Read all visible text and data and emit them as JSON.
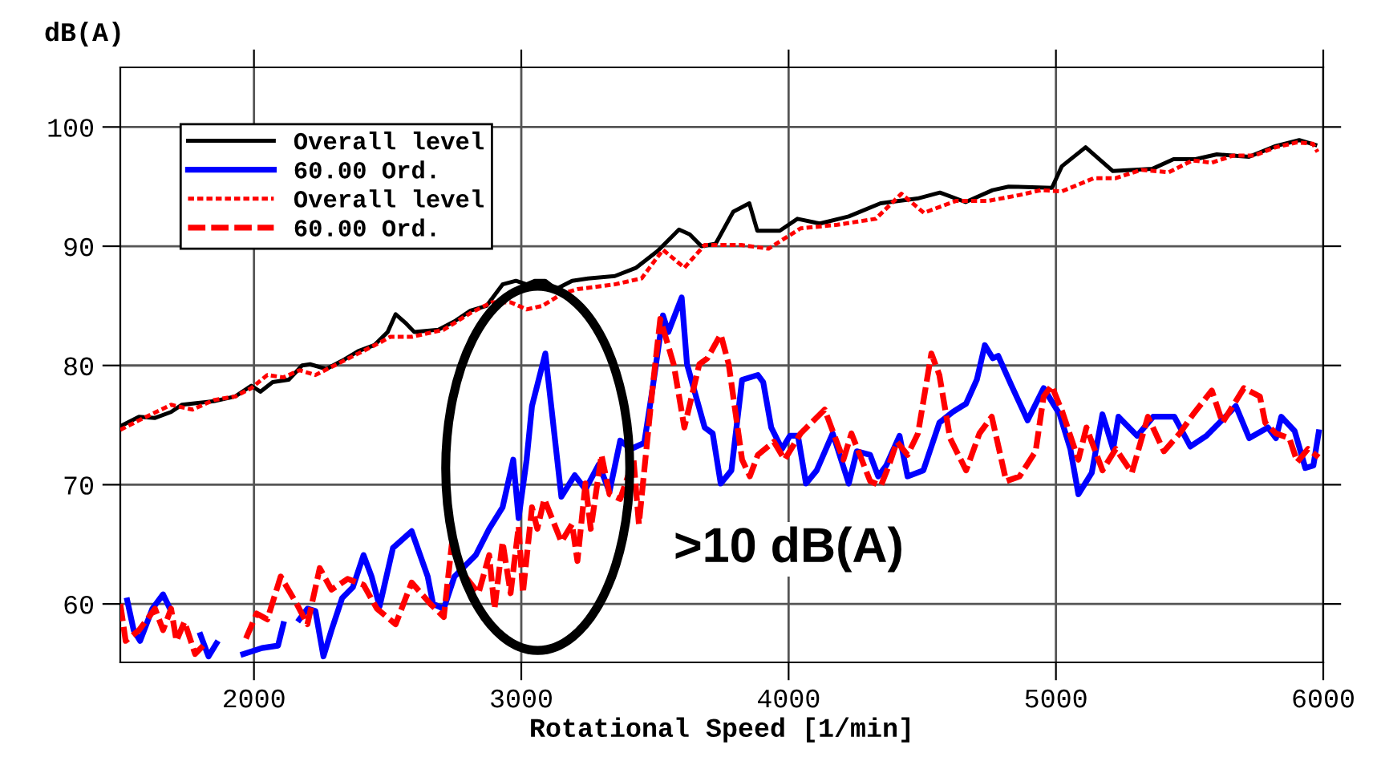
{
  "chart_data": {
    "type": "line",
    "xlabel": "Rotational Speed [1/min]",
    "ylabel": "dB(A)",
    "xlim": [
      1500,
      6000
    ],
    "ylim": [
      55.1,
      105
    ],
    "xticks": [
      2000,
      3000,
      4000,
      5000,
      6000
    ],
    "yticks": [
      60,
      70,
      80,
      90,
      100
    ],
    "grid": true,
    "legend": "top left",
    "annotations": [
      ">10 dB(A)"
    ],
    "series": [
      {
        "name": "Overall level",
        "color": "#000000",
        "line_style": "solid",
        "x": [
          1500,
          1570,
          1630,
          1690,
          1730,
          1850,
          1930,
          1990,
          2024,
          2070,
          2130,
          2180,
          2210,
          2270,
          2330,
          2390,
          2450,
          2500,
          2530,
          2570,
          2600,
          2690,
          2750,
          2810,
          2870,
          2930,
          2980,
          3020,
          3050,
          3090,
          3130,
          3190,
          3250,
          3350,
          3430,
          3510,
          3590,
          3630,
          3674,
          3727,
          3793,
          3853,
          3883,
          3967,
          4033,
          4117,
          4225,
          4344,
          4482,
          4566,
          4662,
          4763,
          4823,
          4985,
          5022,
          5111,
          5213,
          5362,
          5440,
          5522,
          5602,
          5722,
          5822,
          5910,
          5970
        ],
        "values": [
          74.9,
          75.7,
          75.6,
          76.1,
          76.7,
          77.0,
          77.4,
          78.3,
          77.8,
          78.6,
          78.8,
          80.0,
          80.1,
          79.7,
          80.4,
          81.2,
          81.7,
          82.8,
          84.3,
          83.5,
          82.8,
          83.0,
          83.7,
          84.6,
          85.0,
          86.8,
          87.1,
          86.8,
          87.1,
          87.1,
          86.4,
          87.1,
          87.3,
          87.5,
          88.2,
          89.6,
          91.4,
          91.0,
          90.0,
          90.2,
          92.9,
          93.6,
          91.3,
          91.3,
          92.3,
          91.9,
          92.5,
          93.6,
          94.0,
          94.5,
          93.7,
          94.7,
          95.0,
          94.9,
          96.7,
          98.3,
          96.3,
          96.5,
          97.3,
          97.3,
          97.7,
          97.5,
          98.4,
          98.9,
          98.5
        ]
      },
      {
        "name": "60.00 Ord.",
        "color": "#0000ff",
        "line_style": "solid",
        "x": [
          1526,
          1550,
          1574,
          1620,
          1660,
          1686,
          1710,
          1770,
          1800,
          1830,
          1860,
          1880,
          1940,
          1960,
          2030,
          2090,
          2110,
          2140,
          2170,
          2200,
          2230,
          2260,
          2290,
          2330,
          2370,
          2410,
          2440,
          2470,
          2520,
          2590,
          2650,
          2670,
          2710,
          2750,
          2790,
          2830,
          2880,
          2930,
          2970,
          2990,
          3020,
          3040,
          3090,
          3150,
          3200,
          3240,
          3290,
          3330,
          3370,
          3410,
          3460,
          3490,
          3530,
          3550,
          3600,
          3620,
          3686,
          3716,
          3746,
          3786,
          3826,
          3885,
          3905,
          3935,
          3975,
          4005,
          4035,
          4065,
          4105,
          4165,
          4225,
          4255,
          4305,
          4335,
          4365,
          4415,
          4445,
          4504,
          4564,
          4614,
          4664,
          4704,
          4734,
          4764,
          4784,
          4834,
          4894,
          4954,
          5014,
          5054,
          5084,
          5134,
          5174,
          5214,
          5234,
          5304,
          5364,
          5443,
          5503,
          5563,
          5643,
          5673,
          5723,
          5793,
          5823,
          5843,
          5893,
          5933,
          5963,
          5983
        ],
        "values": [
          60.3,
          57.8,
          56.9,
          59.6,
          60.8,
          59.6,
          null,
          null,
          57.4,
          55.6,
          56.7,
          null,
          null,
          55.8,
          56.3,
          56.5,
          58.3,
          null,
          58.7,
          59.6,
          59.4,
          55.6,
          57.8,
          60.5,
          61.4,
          64.1,
          62.3,
          59.8,
          64.7,
          66.1,
          62.3,
          60.0,
          59.6,
          62.3,
          63.2,
          64.1,
          66.3,
          68.1,
          72.1,
          67.2,
          72.1,
          76.6,
          81.0,
          69.0,
          70.8,
          69.6,
          71.7,
          69.4,
          73.7,
          73.0,
          73.5,
          77.9,
          84.2,
          82.8,
          85.7,
          80.1,
          74.8,
          74.3,
          70.1,
          71.2,
          78.8,
          79.2,
          78.6,
          74.8,
          73.0,
          74.1,
          74.1,
          70.1,
          71.2,
          74.3,
          70.1,
          72.8,
          72.5,
          70.7,
          71.6,
          74.1,
          70.7,
          71.2,
          75.2,
          76.1,
          76.8,
          78.8,
          81.7,
          80.6,
          80.8,
          78.3,
          75.4,
          78.1,
          75.9,
          73.0,
          69.2,
          71.0,
          75.9,
          73.0,
          75.7,
          74.1,
          75.7,
          75.7,
          73.2,
          74.1,
          75.9,
          76.6,
          73.9,
          74.8,
          73.9,
          75.7,
          74.5,
          71.4,
          71.6,
          74.4
        ]
      },
      {
        "name": "Overall level",
        "color": "#ff0000",
        "line_style": "dotted",
        "x": [
          1500,
          1570,
          1690,
          1770,
          1850,
          1930,
          1990,
          2050,
          2110,
          2170,
          2230,
          2310,
          2390,
          2470,
          2510,
          2590,
          2710,
          2810,
          2890,
          2960,
          3020,
          3080,
          3150,
          3210,
          3350,
          3450,
          3530,
          3610,
          3686,
          3823,
          3925,
          4045,
          4183,
          4326,
          4422,
          4506,
          4626,
          4746,
          4865,
          4943,
          5022,
          5141,
          5222,
          5320,
          5422,
          5511,
          5582,
          5662,
          5742,
          5822,
          5901,
          5961,
          5979
        ],
        "values": [
          74.6,
          75.4,
          76.7,
          76.3,
          77.1,
          77.4,
          78.1,
          79.2,
          79.0,
          79.6,
          79.2,
          80.1,
          81.0,
          81.9,
          82.4,
          82.4,
          83.0,
          84.4,
          85.3,
          85.3,
          84.7,
          85.0,
          86.0,
          86.4,
          86.8,
          87.3,
          89.7,
          88.2,
          90.1,
          90.1,
          89.8,
          91.5,
          91.8,
          92.3,
          94.4,
          92.8,
          93.8,
          93.8,
          94.3,
          94.7,
          94.6,
          95.7,
          95.7,
          96.4,
          96.2,
          97.2,
          97.0,
          97.6,
          97.6,
          98.3,
          98.7,
          98.6,
          97.9
        ]
      },
      {
        "name": "60.00 Ord.",
        "color": "#ff0000",
        "line_style": "dashed",
        "x": [
          1500,
          1520,
          1570,
          1630,
          1660,
          1690,
          1710,
          1740,
          1780,
          1810,
          1830,
          1910,
          1970,
          2010,
          2050,
          2100,
          2160,
          2200,
          2246,
          2290,
          2350,
          2410,
          2460,
          2530,
          2590,
          2660,
          2710,
          2740,
          2790,
          2840,
          2880,
          2900,
          2930,
          2960,
          2990,
          3006,
          3040,
          3060,
          3086,
          3150,
          3190,
          3210,
          3240,
          3260,
          3300,
          3330,
          3370,
          3420,
          3440,
          3490,
          3520,
          3570,
          3610,
          3666,
          3696,
          3746,
          3776,
          3826,
          3855,
          3885,
          3945,
          3985,
          4045,
          4135,
          4205,
          4235,
          4305,
          4345,
          4375,
          4405,
          4445,
          4484,
          4534,
          4564,
          4604,
          4664,
          4714,
          4760,
          4814,
          4864,
          4924,
          4954,
          4984,
          5024,
          5084,
          5114,
          5174,
          5224,
          5284,
          5344,
          5404,
          5463,
          5513,
          5583,
          5623,
          5703,
          5763,
          5783,
          5823,
          5873,
          5903,
          5943,
          5983
        ],
        "values": [
          60.0,
          56.9,
          57.8,
          59.6,
          57.8,
          59.6,
          56.9,
          58.5,
          55.8,
          56.5,
          null,
          null,
          57.1,
          59.2,
          58.7,
          62.3,
          60.0,
          58.3,
          63.0,
          61.2,
          62.1,
          61.6,
          59.6,
          58.3,
          61.8,
          60.0,
          58.9,
          65.0,
          62.3,
          60.9,
          64.1,
          59.6,
          65.2,
          60.9,
          66.5,
          60.9,
          68.1,
          66.3,
          68.8,
          65.2,
          66.7,
          63.6,
          70.1,
          66.3,
          72.5,
          69.2,
          68.8,
          72.1,
          66.7,
          77.9,
          83.9,
          80.1,
          74.8,
          80.1,
          80.6,
          82.6,
          80.1,
          72.1,
          70.7,
          72.5,
          73.6,
          72.1,
          74.3,
          76.3,
          72.1,
          74.3,
          70.3,
          69.9,
          71.6,
          73.6,
          72.5,
          74.3,
          81.0,
          79.2,
          73.9,
          71.2,
          74.3,
          75.7,
          70.3,
          70.7,
          72.8,
          77.4,
          78.3,
          76.1,
          72.1,
          74.8,
          71.2,
          73.0,
          71.0,
          75.7,
          72.8,
          74.3,
          75.9,
          77.9,
          75.2,
          78.1,
          77.4,
          75.2,
          74.3,
          73.9,
          71.9,
          73.0,
          72.3
        ]
      }
    ]
  }
}
